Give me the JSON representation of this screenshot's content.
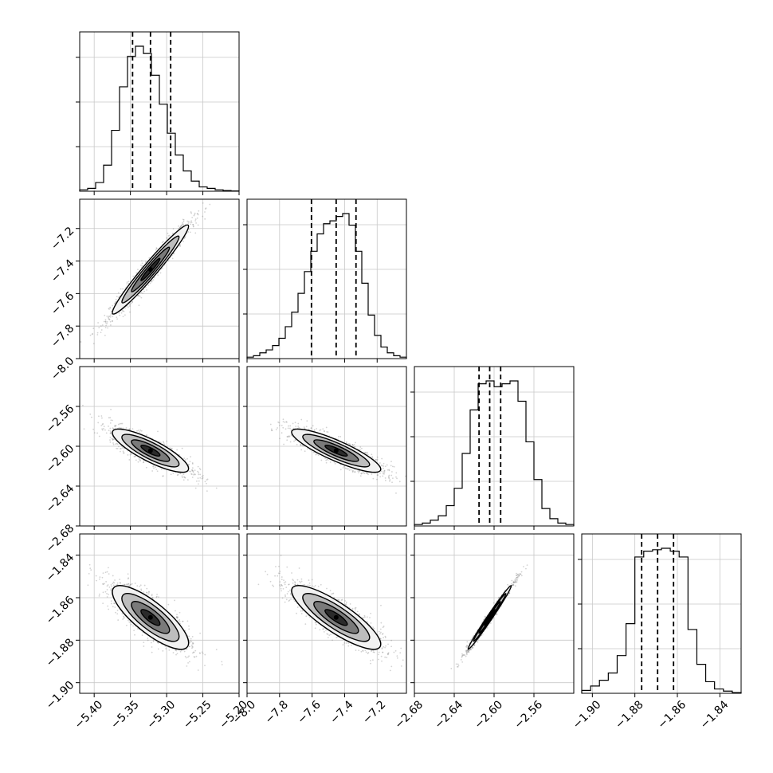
{
  "chart_data": {
    "type": "corner",
    "grid": true,
    "parameters": [
      {
        "range": [
          -5.42,
          -5.2
        ],
        "ticks": [
          -5.4,
          -5.35,
          -5.3,
          -5.25,
          -5.2
        ],
        "tick_labels": [
          "−5.40",
          "−5.35",
          "−5.30",
          "−5.25",
          "−5.20"
        ],
        "quantiles": [
          -5.347,
          -5.3223,
          -5.2944
        ]
      },
      {
        "range": [
          -8.0,
          -7.02
        ],
        "ticks": [
          -8.0,
          -7.8,
          -7.6,
          -7.4,
          -7.2
        ],
        "tick_labels": [
          "−8.0",
          "−7.8",
          "−7.6",
          "−7.4",
          "−7.2"
        ],
        "quantiles": [
          -7.604,
          -7.452,
          -7.33
        ]
      },
      {
        "range": [
          -2.68,
          -2.52
        ],
        "ticks": [
          -2.68,
          -2.64,
          -2.6,
          -2.56
        ],
        "tick_labels": [
          "−2.68",
          "−2.64",
          "−2.60",
          "−2.56"
        ],
        "quantiles": [
          -2.6151,
          -2.6044,
          -2.5934
        ]
      },
      {
        "range": [
          -1.905,
          -1.83
        ],
        "ticks": [
          -1.9,
          -1.88,
          -1.86,
          -1.84
        ],
        "tick_labels": [
          "−1.90",
          "−1.88",
          "−1.86",
          "−1.84"
        ],
        "quantiles": [
          -1.8768,
          -1.8693,
          -1.8618
        ]
      }
    ],
    "histograms": [
      [
        0.01,
        0.02,
        0.06,
        0.18,
        0.42,
        0.72,
        0.93,
        1.0,
        0.95,
        0.8,
        0.6,
        0.4,
        0.25,
        0.14,
        0.07,
        0.03,
        0.02,
        0.01,
        0.005,
        0.002
      ],
      [
        0.01,
        0.02,
        0.04,
        0.06,
        0.09,
        0.14,
        0.22,
        0.32,
        0.45,
        0.6,
        0.74,
        0.86,
        0.93,
        0.95,
        0.98,
        1.0,
        0.92,
        0.74,
        0.52,
        0.3,
        0.16,
        0.08,
        0.04,
        0.02,
        0.01
      ],
      [
        0.01,
        0.02,
        0.04,
        0.07,
        0.14,
        0.26,
        0.5,
        0.8,
        0.98,
        1.0,
        0.96,
        0.98,
        1.0,
        0.86,
        0.58,
        0.32,
        0.12,
        0.05,
        0.02,
        0.01
      ],
      [
        0.02,
        0.05,
        0.09,
        0.14,
        0.26,
        0.48,
        0.94,
        0.98,
        0.99,
        1.0,
        0.98,
        0.94,
        0.44,
        0.2,
        0.08,
        0.03,
        0.015,
        0.005
      ]
    ],
    "correlations": {
      "1-0": 0.97,
      "2-0": -0.83,
      "2-1": -0.86,
      "3-0": -0.8,
      "3-1": -0.84,
      "3-2": 0.99
    },
    "marker_color": "#000000",
    "scatter_color": "#808080"
  }
}
